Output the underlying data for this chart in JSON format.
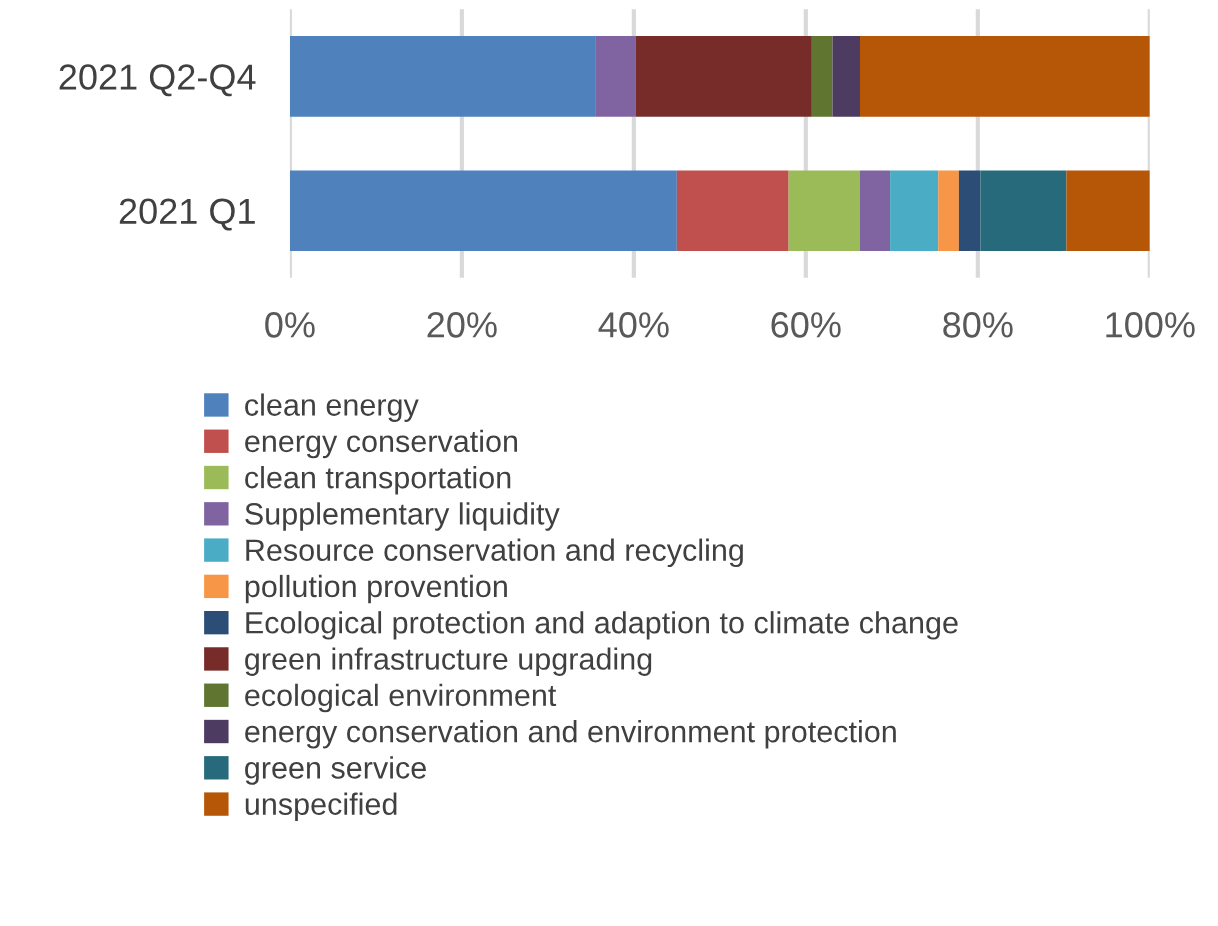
{
  "chart_data": {
    "type": "bar",
    "orientation": "horizontal",
    "stacked": true,
    "categories": [
      "2021 Q2-Q4",
      "2021 Q1"
    ],
    "series": [
      {
        "name": "clean energy",
        "color": "#4f81bd",
        "values": [
          35.5,
          45.0
        ]
      },
      {
        "name": "energy conservation",
        "color": "#c0504d",
        "values": [
          null,
          13.0
        ]
      },
      {
        "name": "clean transportation",
        "color": "#9bbb59",
        "values": [
          null,
          8.3
        ]
      },
      {
        "name": "Supplementary liquidity",
        "color": "#8064a2",
        "values": [
          4.7,
          3.5
        ]
      },
      {
        "name": "Resource conservation and recycling",
        "color": "#4bacc6",
        "values": [
          null,
          5.6
        ]
      },
      {
        "name": "pollution provention",
        "color": "#f79646",
        "values": [
          null,
          2.4
        ]
      },
      {
        "name": "Ecological protection and adaption to climate change",
        "color": "#2c4d75",
        "values": [
          null,
          2.5
        ]
      },
      {
        "name": "green infrastructure upgrading",
        "color": "#772c2a",
        "values": [
          20.5,
          null
        ]
      },
      {
        "name": "ecological environment",
        "color": "#5f7530",
        "values": [
          2.4,
          null
        ]
      },
      {
        "name": "energy conservation and environment protection",
        "color": "#4d3b62",
        "values": [
          3.2,
          null
        ]
      },
      {
        "name": "green service",
        "color": "#276a7c",
        "values": [
          null,
          10.0
        ]
      },
      {
        "name": "unspecified",
        "color": "#b65708",
        "values": [
          33.7,
          9.7
        ]
      }
    ],
    "xlim": [
      0,
      100
    ],
    "xticks": [
      {
        "value": 0,
        "label": "0%"
      },
      {
        "value": 20,
        "label": "20%"
      },
      {
        "value": 40,
        "label": "40%"
      },
      {
        "value": 60,
        "label": "60%"
      },
      {
        "value": 80,
        "label": "80%"
      },
      {
        "value": 100,
        "label": "100%"
      }
    ],
    "grid": "x",
    "legend": "bottom"
  }
}
